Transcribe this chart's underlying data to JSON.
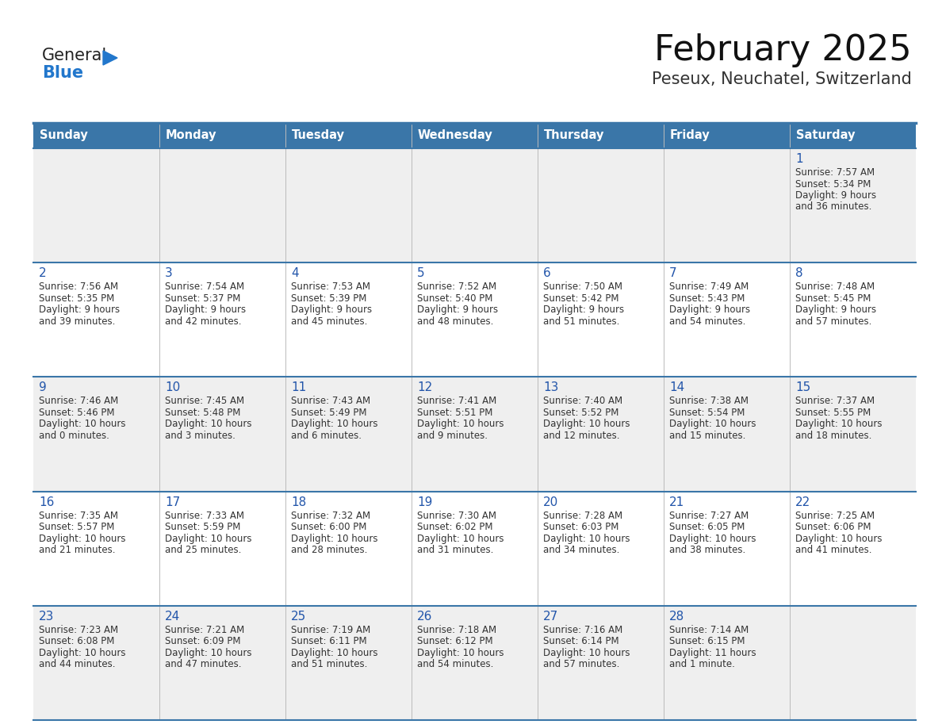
{
  "title": "February 2025",
  "subtitle": "Peseux, Neuchatel, Switzerland",
  "days_of_week": [
    "Sunday",
    "Monday",
    "Tuesday",
    "Wednesday",
    "Thursday",
    "Friday",
    "Saturday"
  ],
  "header_bg": "#3A76A8",
  "header_text": "#FFFFFF",
  "row_bg_light": "#EFEFEF",
  "row_bg_white": "#FFFFFF",
  "day_number_color": "#2255AA",
  "text_color": "#333333",
  "line_color": "#3A76A8",
  "title_color": "#111111",
  "subtitle_color": "#333333",
  "logo_color_general": "#222222",
  "logo_color_blue": "#2277CC",
  "logo_triangle_color": "#2277CC",
  "calendar_data": [
    [
      null,
      null,
      null,
      null,
      null,
      null,
      {
        "day": 1,
        "sunrise": "7:57 AM",
        "sunset": "5:34 PM",
        "dl1": "9 hours",
        "dl2": "and 36 minutes."
      }
    ],
    [
      {
        "day": 2,
        "sunrise": "7:56 AM",
        "sunset": "5:35 PM",
        "dl1": "9 hours",
        "dl2": "and 39 minutes."
      },
      {
        "day": 3,
        "sunrise": "7:54 AM",
        "sunset": "5:37 PM",
        "dl1": "9 hours",
        "dl2": "and 42 minutes."
      },
      {
        "day": 4,
        "sunrise": "7:53 AM",
        "sunset": "5:39 PM",
        "dl1": "9 hours",
        "dl2": "and 45 minutes."
      },
      {
        "day": 5,
        "sunrise": "7:52 AM",
        "sunset": "5:40 PM",
        "dl1": "9 hours",
        "dl2": "and 48 minutes."
      },
      {
        "day": 6,
        "sunrise": "7:50 AM",
        "sunset": "5:42 PM",
        "dl1": "9 hours",
        "dl2": "and 51 minutes."
      },
      {
        "day": 7,
        "sunrise": "7:49 AM",
        "sunset": "5:43 PM",
        "dl1": "9 hours",
        "dl2": "and 54 minutes."
      },
      {
        "day": 8,
        "sunrise": "7:48 AM",
        "sunset": "5:45 PM",
        "dl1": "9 hours",
        "dl2": "and 57 minutes."
      }
    ],
    [
      {
        "day": 9,
        "sunrise": "7:46 AM",
        "sunset": "5:46 PM",
        "dl1": "10 hours",
        "dl2": "and 0 minutes."
      },
      {
        "day": 10,
        "sunrise": "7:45 AM",
        "sunset": "5:48 PM",
        "dl1": "10 hours",
        "dl2": "and 3 minutes."
      },
      {
        "day": 11,
        "sunrise": "7:43 AM",
        "sunset": "5:49 PM",
        "dl1": "10 hours",
        "dl2": "and 6 minutes."
      },
      {
        "day": 12,
        "sunrise": "7:41 AM",
        "sunset": "5:51 PM",
        "dl1": "10 hours",
        "dl2": "and 9 minutes."
      },
      {
        "day": 13,
        "sunrise": "7:40 AM",
        "sunset": "5:52 PM",
        "dl1": "10 hours",
        "dl2": "and 12 minutes."
      },
      {
        "day": 14,
        "sunrise": "7:38 AM",
        "sunset": "5:54 PM",
        "dl1": "10 hours",
        "dl2": "and 15 minutes."
      },
      {
        "day": 15,
        "sunrise": "7:37 AM",
        "sunset": "5:55 PM",
        "dl1": "10 hours",
        "dl2": "and 18 minutes."
      }
    ],
    [
      {
        "day": 16,
        "sunrise": "7:35 AM",
        "sunset": "5:57 PM",
        "dl1": "10 hours",
        "dl2": "and 21 minutes."
      },
      {
        "day": 17,
        "sunrise": "7:33 AM",
        "sunset": "5:59 PM",
        "dl1": "10 hours",
        "dl2": "and 25 minutes."
      },
      {
        "day": 18,
        "sunrise": "7:32 AM",
        "sunset": "6:00 PM",
        "dl1": "10 hours",
        "dl2": "and 28 minutes."
      },
      {
        "day": 19,
        "sunrise": "7:30 AM",
        "sunset": "6:02 PM",
        "dl1": "10 hours",
        "dl2": "and 31 minutes."
      },
      {
        "day": 20,
        "sunrise": "7:28 AM",
        "sunset": "6:03 PM",
        "dl1": "10 hours",
        "dl2": "and 34 minutes."
      },
      {
        "day": 21,
        "sunrise": "7:27 AM",
        "sunset": "6:05 PM",
        "dl1": "10 hours",
        "dl2": "and 38 minutes."
      },
      {
        "day": 22,
        "sunrise": "7:25 AM",
        "sunset": "6:06 PM",
        "dl1": "10 hours",
        "dl2": "and 41 minutes."
      }
    ],
    [
      {
        "day": 23,
        "sunrise": "7:23 AM",
        "sunset": "6:08 PM",
        "dl1": "10 hours",
        "dl2": "and 44 minutes."
      },
      {
        "day": 24,
        "sunrise": "7:21 AM",
        "sunset": "6:09 PM",
        "dl1": "10 hours",
        "dl2": "and 47 minutes."
      },
      {
        "day": 25,
        "sunrise": "7:19 AM",
        "sunset": "6:11 PM",
        "dl1": "10 hours",
        "dl2": "and 51 minutes."
      },
      {
        "day": 26,
        "sunrise": "7:18 AM",
        "sunset": "6:12 PM",
        "dl1": "10 hours",
        "dl2": "and 54 minutes."
      },
      {
        "day": 27,
        "sunrise": "7:16 AM",
        "sunset": "6:14 PM",
        "dl1": "10 hours",
        "dl2": "and 57 minutes."
      },
      {
        "day": 28,
        "sunrise": "7:14 AM",
        "sunset": "6:15 PM",
        "dl1": "11 hours",
        "dl2": "and 1 minute."
      },
      null
    ]
  ]
}
